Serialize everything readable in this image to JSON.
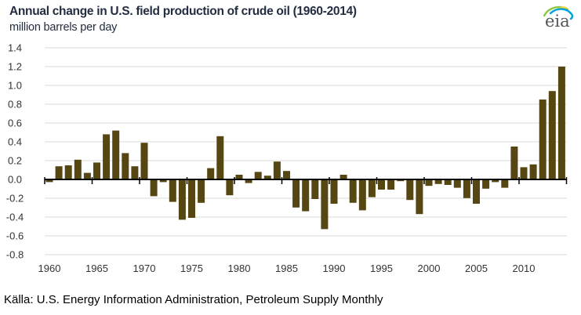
{
  "header": {
    "title": "Annual change in U.S. field production of crude oil (1960-2014)",
    "subtitle": "million barrels per day"
  },
  "logo": {
    "text": "eia"
  },
  "source_line": "Källa: U.S. Energy Information Administration, Petroleum Supply Monthly",
  "chart_data": {
    "type": "bar",
    "title": "Annual change in U.S. field production of crude oil (1960-2014)",
    "ylabel": "million barrels per day",
    "xlabel": "",
    "ylim": [
      -0.8,
      1.4
    ],
    "ytick_step": 0.2,
    "grid": true,
    "legend": false,
    "ytick_labels": [
      "1.4",
      "1.2",
      "1.0",
      "0.8",
      "0.6",
      "0.4",
      "0.2",
      "0.0",
      "-0.2",
      "-0.4",
      "-0.6",
      "-0.8"
    ],
    "xtick_labels": [
      "1960",
      "1965",
      "1970",
      "1975",
      "1980",
      "1985",
      "1990",
      "1995",
      "2000",
      "2005",
      "2010"
    ],
    "categories": [
      1960,
      1961,
      1962,
      1963,
      1964,
      1965,
      1966,
      1967,
      1968,
      1969,
      1970,
      1971,
      1972,
      1973,
      1974,
      1975,
      1976,
      1977,
      1978,
      1979,
      1980,
      1981,
      1982,
      1983,
      1984,
      1985,
      1986,
      1987,
      1988,
      1989,
      1990,
      1991,
      1992,
      1993,
      1994,
      1995,
      1996,
      1997,
      1998,
      1999,
      2000,
      2001,
      2002,
      2003,
      2004,
      2005,
      2006,
      2007,
      2008,
      2009,
      2010,
      2011,
      2012,
      2013,
      2014
    ],
    "values": [
      -0.02,
      0.14,
      0.15,
      0.21,
      0.07,
      0.18,
      0.48,
      0.52,
      0.28,
      0.14,
      0.39,
      -0.17,
      -0.02,
      -0.23,
      -0.42,
      -0.4,
      -0.24,
      0.12,
      0.46,
      -0.16,
      0.05,
      -0.03,
      0.08,
      0.04,
      0.19,
      0.09,
      -0.29,
      -0.33,
      -0.2,
      -0.52,
      -0.25,
      0.05,
      -0.24,
      -0.32,
      -0.18,
      -0.1,
      -0.1,
      -0.01,
      -0.21,
      -0.36,
      -0.06,
      -0.04,
      -0.05,
      -0.08,
      -0.19,
      -0.25,
      -0.09,
      -0.02,
      -0.08,
      0.35,
      0.13,
      0.16,
      0.85,
      0.94,
      1.2
    ],
    "colors": {
      "bar": "#564612",
      "grid": "#d9d9d9",
      "axis": "#000000",
      "tick_text": "#333333",
      "logo_green": "#8dc63f",
      "logo_yellow": "#ffd040",
      "logo_blue": "#00a3da"
    }
  }
}
